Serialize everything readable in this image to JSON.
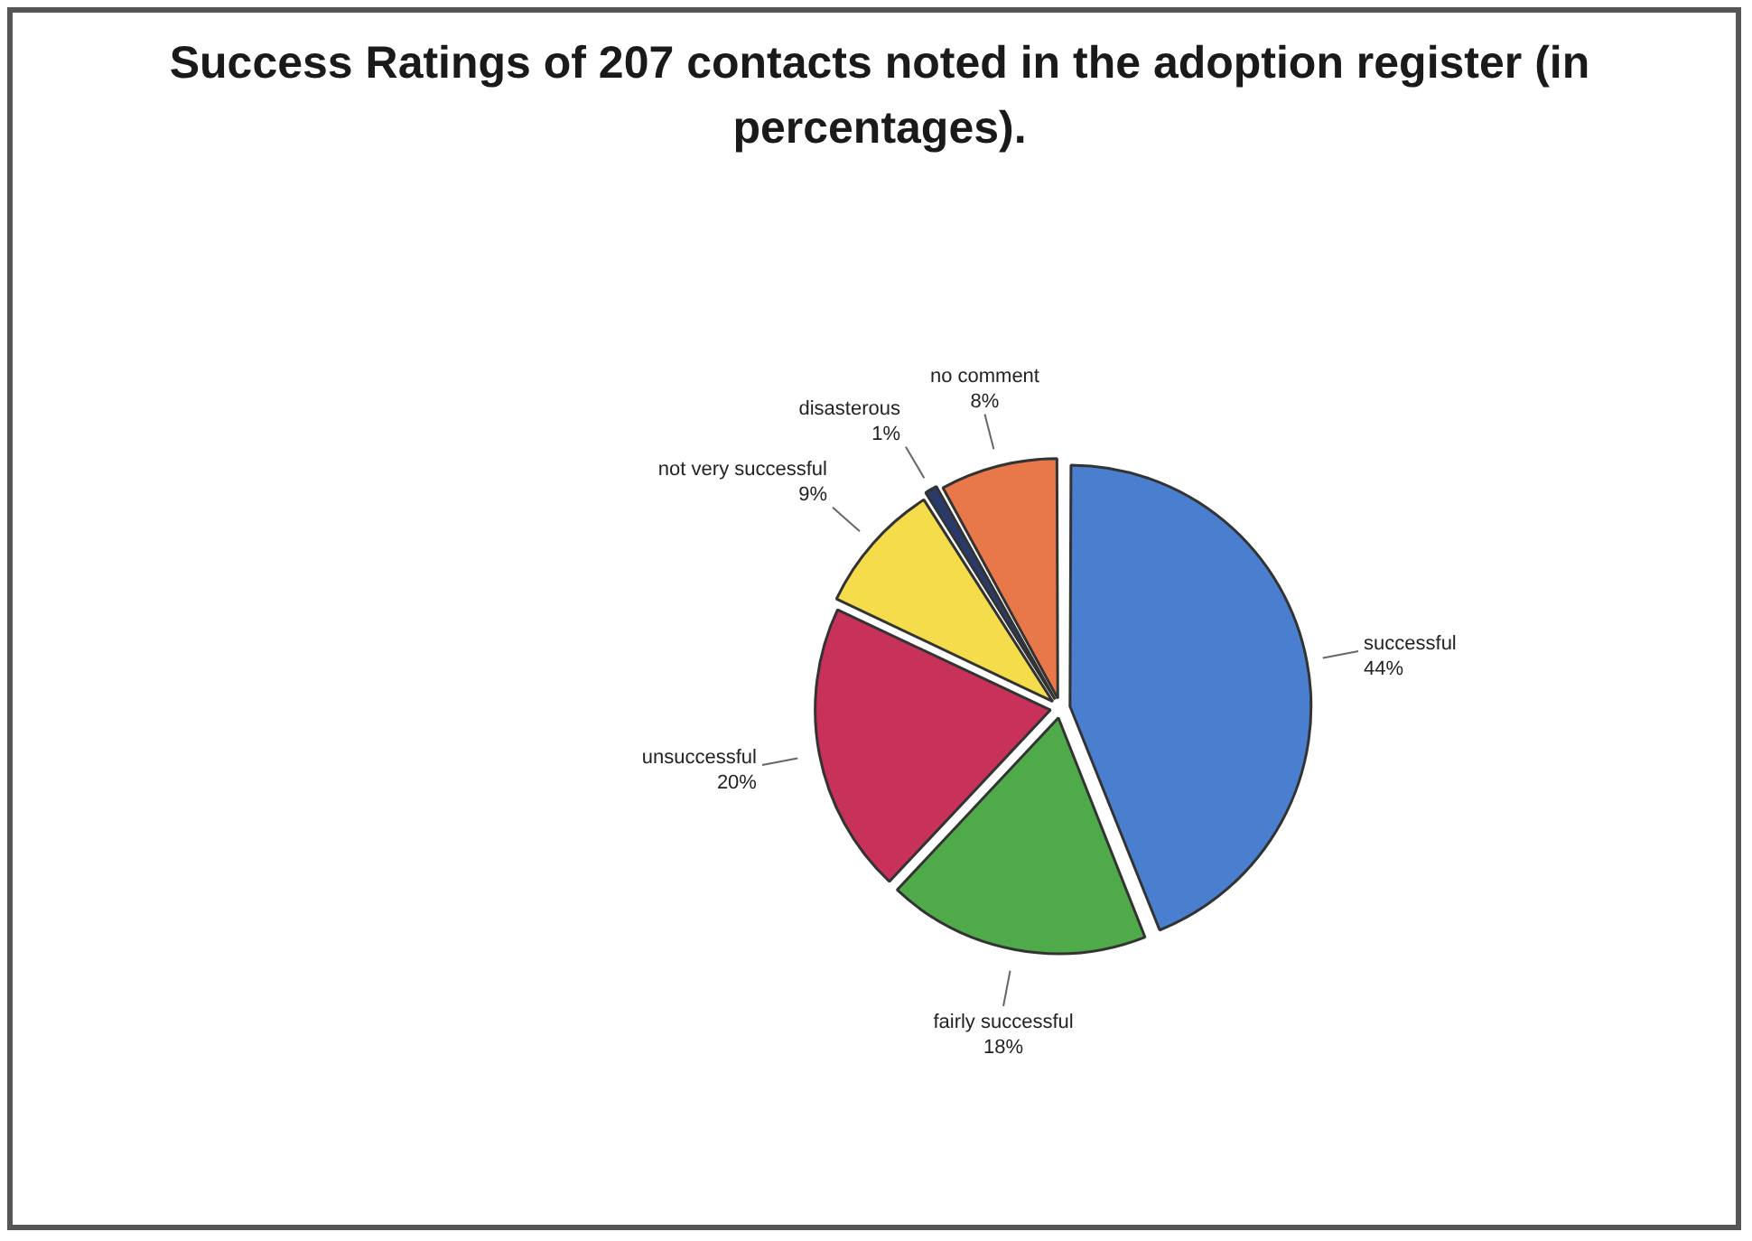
{
  "chart_data": {
    "type": "pie",
    "title": "Success Ratings of 207  contacts noted in the adoption register (in percentages).",
    "categories": [
      "successful",
      "fairly successful",
      "unsuccessful",
      "not very successful",
      "disasterous",
      "no comment"
    ],
    "values": [
      44,
      18,
      20,
      9,
      1,
      8
    ],
    "value_labels": [
      "44%",
      "18%",
      "20%",
      "9%",
      "1%",
      "8%"
    ],
    "colors": [
      "#4a7fcf",
      "#4faa4a",
      "#c8325a",
      "#f5dc4a",
      "#2a3a6a",
      "#e8784a"
    ],
    "legend": false
  }
}
